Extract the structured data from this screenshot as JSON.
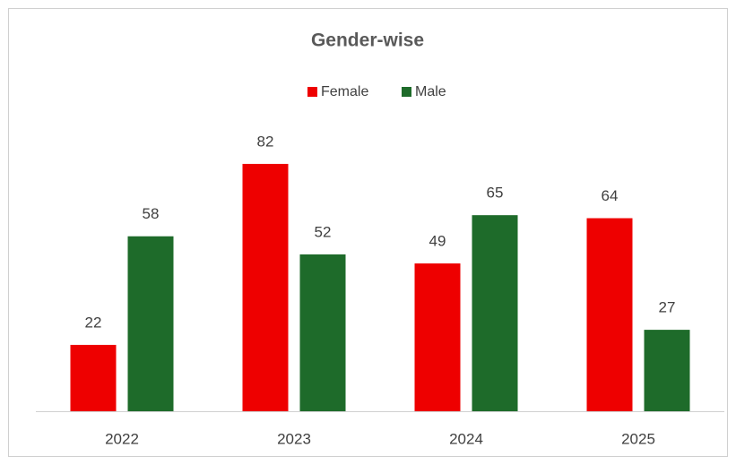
{
  "chart_data": {
    "type": "bar",
    "title": "Gender-wise",
    "categories": [
      "2022",
      "2023",
      "2024",
      "2025"
    ],
    "series": [
      {
        "name": "Female",
        "color": "#ee0000",
        "values": [
          22,
          82,
          49,
          64
        ]
      },
      {
        "name": "Male",
        "color": "#1e6b2a",
        "values": [
          58,
          52,
          65,
          27
        ]
      }
    ],
    "ylim": [
      0,
      90
    ],
    "legend": "top"
  }
}
